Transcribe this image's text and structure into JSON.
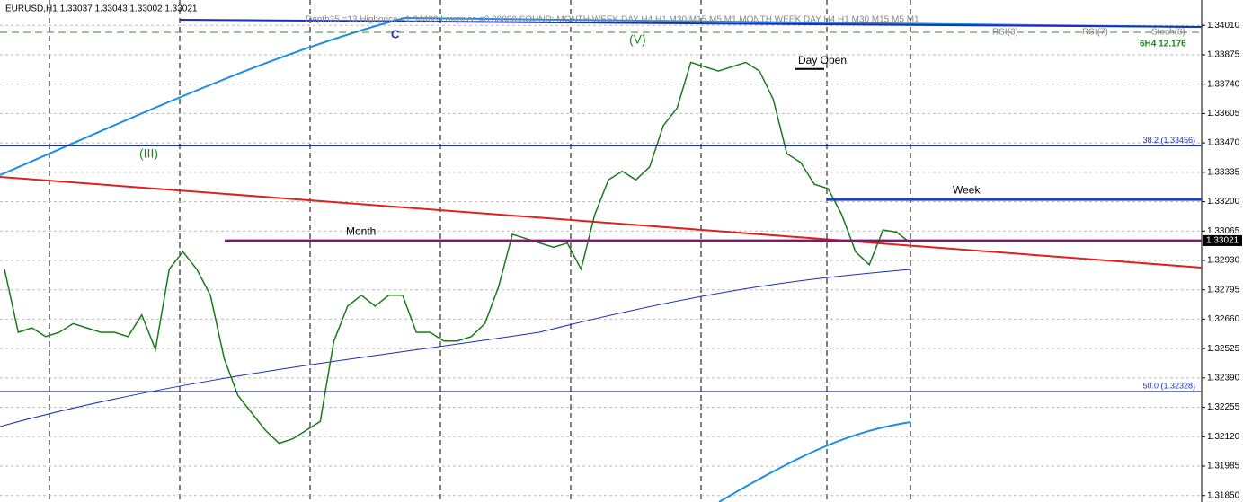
{
  "chart_data": {
    "type": "line",
    "title": "EURUSD,H1 1.33037 1.33043 1.33002 1.33021",
    "subtitle": "Depth35 =13 Highprice =1.34400 Lowprice =0.00000 SOUND:  MONTH  WEEK  DAY  H4  H1  M30  M15  M5  M1  MONTH  WEEK  DAY  H4  H1  M30  M15  M5  M1",
    "indicator_labels": [
      "RSI(3)",
      "RSI(7)",
      "Stoch(8)"
    ],
    "info_label": "6H4 12.176",
    "wave_labels": [
      "C",
      "(V)",
      "(III)"
    ],
    "categories": [
      null,
      null,
      null,
      null,
      null,
      null,
      null,
      null,
      null,
      null,
      null,
      null,
      null,
      null,
      null,
      null,
      null,
      null,
      null,
      null,
      null,
      null,
      null,
      null,
      null,
      null,
      null,
      null,
      null,
      null,
      null,
      null,
      null,
      null,
      null,
      null,
      null,
      null,
      null,
      null,
      null,
      null,
      null,
      null,
      null,
      null,
      null,
      null,
      null,
      null,
      null,
      null,
      null,
      null,
      null,
      null,
      null,
      null,
      null,
      null,
      null,
      null,
      null,
      null,
      null,
      null,
      null
    ],
    "series": [
      {
        "name": "EURUSD",
        "color": "#1a7a1a",
        "values": [
          1.3289,
          1.326,
          1.3262,
          1.3258,
          1.326,
          1.3264,
          1.3262,
          1.326,
          1.326,
          1.3258,
          1.3268,
          1.3252,
          1.3289,
          1.3297,
          1.3289,
          1.3277,
          1.3248,
          1.3231,
          1.3223,
          1.3215,
          1.3209,
          1.3211,
          1.3215,
          1.3219,
          1.3256,
          1.3272,
          1.3277,
          1.3272,
          1.3277,
          1.3277,
          1.326,
          1.326,
          1.3256,
          1.3256,
          1.3258,
          1.3264,
          1.3281,
          1.3305,
          1.3303,
          1.3301,
          1.3299,
          1.3301,
          1.3289,
          1.3314,
          1.333,
          1.3334,
          1.333,
          1.3336,
          1.3355,
          1.3363,
          1.3384,
          1.3382,
          1.338,
          1.3382,
          1.3384,
          1.338,
          1.3367,
          1.3342,
          1.3338,
          1.3328,
          1.3326,
          1.3314,
          1.3297,
          1.3291,
          1.3307,
          1.3306,
          1.3301
        ]
      }
    ],
    "levels": [
      {
        "label": "38.2 (1.33456)",
        "value": 1.33456,
        "color": "#1a2fb8"
      },
      {
        "label": "50.0 (1.32328)",
        "value": 1.32328,
        "color": "#1a2fb8"
      },
      {
        "label": "Month",
        "value": 1.3302,
        "color": "#7a1a6a"
      },
      {
        "label": "Week",
        "value": 1.3321,
        "color": "#1a3fc8"
      },
      {
        "label": "Day Open",
        "value": 1.3381,
        "color": "#000000"
      }
    ],
    "last_price": {
      "value": 1.33021,
      "label": "1.33021"
    },
    "ylim": [
      1.3182,
      1.3411
    ],
    "yticks": [
      {
        "value": 1.3401,
        "label": "1.34010"
      },
      {
        "value": 1.33875,
        "label": "1.33875"
      },
      {
        "value": 1.3374,
        "label": "1.33740"
      },
      {
        "value": 1.33605,
        "label": "1.33605"
      },
      {
        "value": 1.3347,
        "label": "1.33470"
      },
      {
        "value": 1.33335,
        "label": "1.33335"
      },
      {
        "value": 1.332,
        "label": "1.33200"
      },
      {
        "value": 1.33065,
        "label": "1.33065"
      },
      {
        "value": 1.3293,
        "label": "1.32930"
      },
      {
        "value": 1.32795,
        "label": "1.32795"
      },
      {
        "value": 1.3266,
        "label": "1.32660"
      },
      {
        "value": 1.32525,
        "label": "1.32525"
      },
      {
        "value": 1.3239,
        "label": "1.32390"
      },
      {
        "value": 1.32255,
        "label": "1.32255"
      },
      {
        "value": 1.3212,
        "label": "1.32120"
      },
      {
        "value": 1.31985,
        "label": "1.31985"
      },
      {
        "value": 1.3185,
        "label": "1.31850"
      }
    ],
    "grid": true
  }
}
